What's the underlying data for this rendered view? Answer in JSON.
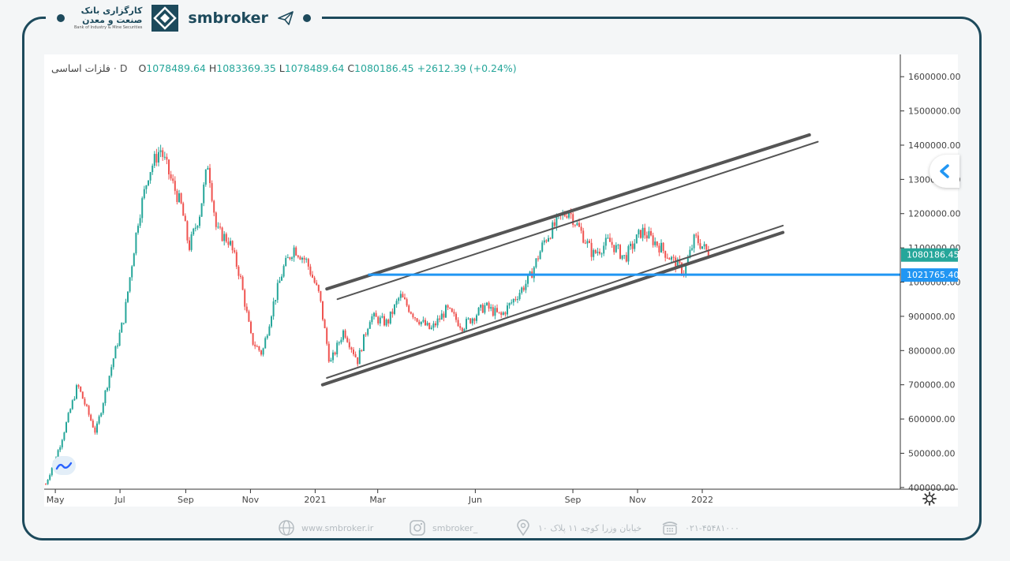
{
  "brand": {
    "bank_name_line1": "کارگزاری بانک",
    "bank_name_line2": "صنعت و معدن",
    "bank_name_en": "Bank of Industry & Mine Securities",
    "site_name": "smbroker",
    "bank_logo_icon": "diamond-logo-icon",
    "plane_icon": "paper-plane-icon"
  },
  "legend": {
    "symbol": "فلزات اساسی",
    "separator": "·",
    "interval": "D",
    "open_label": "O",
    "open": "1078489.64",
    "high_label": "H",
    "high": "1083369.35",
    "low_label": "L",
    "low": "1078489.64",
    "close_label": "C",
    "close": "1080186.45",
    "change": "+2612.39 (+0.24%)"
  },
  "chart_data": {
    "type": "candlestick",
    "title": "",
    "interval": "D",
    "x_axis_labels": [
      "May",
      "Jul",
      "Sep",
      "Nov",
      "2021",
      "Mar",
      "Jun",
      "Sep",
      "Nov",
      "2022"
    ],
    "y_axis": {
      "ticks": [
        400000,
        500000,
        600000,
        700000,
        800000,
        900000,
        1000000,
        1100000,
        1200000,
        1300000,
        1400000,
        1500000,
        1600000
      ],
      "tick_labels": [
        "400000.00",
        "500000.00",
        "600000.00",
        "700000.00",
        "800000.00",
        "900000.00",
        "1000000.00",
        "1100000.00",
        "1200000.00",
        "1300000.00",
        "1400000.00",
        "1500000.00",
        "1600000.00"
      ],
      "range": [
        395000,
        1665000
      ],
      "position": "right"
    },
    "up_color": "#26a69a",
    "down_color": "#ef5350",
    "approx_close_path": [
      {
        "x": "2020-04-22",
        "y": 410000
      },
      {
        "x": "2020-05-05",
        "y": 520000
      },
      {
        "x": "2020-05-22",
        "y": 700000
      },
      {
        "x": "2020-06-08",
        "y": 560000
      },
      {
        "x": "2020-06-25",
        "y": 780000
      },
      {
        "x": "2020-07-05",
        "y": 900000
      },
      {
        "x": "2020-07-18",
        "y": 1180000
      },
      {
        "x": "2020-07-28",
        "y": 1320000
      },
      {
        "x": "2020-08-08",
        "y": 1390000
      },
      {
        "x": "2020-08-18",
        "y": 1300000
      },
      {
        "x": "2020-08-28",
        "y": 1220000
      },
      {
        "x": "2020-09-04",
        "y": 1100000
      },
      {
        "x": "2020-09-14",
        "y": 1200000
      },
      {
        "x": "2020-09-22",
        "y": 1350000
      },
      {
        "x": "2020-09-30",
        "y": 1150000
      },
      {
        "x": "2020-10-12",
        "y": 1120000
      },
      {
        "x": "2020-10-22",
        "y": 1020000
      },
      {
        "x": "2020-11-02",
        "y": 830000
      },
      {
        "x": "2020-11-12",
        "y": 790000
      },
      {
        "x": "2020-11-22",
        "y": 930000
      },
      {
        "x": "2020-12-02",
        "y": 1040000
      },
      {
        "x": "2020-12-12",
        "y": 1100000
      },
      {
        "x": "2020-12-24",
        "y": 1060000
      },
      {
        "x": "2021-01-05",
        "y": 960000
      },
      {
        "x": "2021-01-15",
        "y": 760000
      },
      {
        "x": "2021-01-28",
        "y": 860000
      },
      {
        "x": "2021-02-10",
        "y": 770000
      },
      {
        "x": "2021-02-22",
        "y": 900000
      },
      {
        "x": "2021-03-10",
        "y": 880000
      },
      {
        "x": "2021-03-22",
        "y": 960000
      },
      {
        "x": "2021-04-05",
        "y": 900000
      },
      {
        "x": "2021-04-20",
        "y": 860000
      },
      {
        "x": "2021-05-05",
        "y": 920000
      },
      {
        "x": "2021-05-20",
        "y": 870000
      },
      {
        "x": "2021-06-10",
        "y": 930000
      },
      {
        "x": "2021-06-25",
        "y": 900000
      },
      {
        "x": "2021-07-10",
        "y": 960000
      },
      {
        "x": "2021-07-22",
        "y": 1010000
      },
      {
        "x": "2021-08-05",
        "y": 1120000
      },
      {
        "x": "2021-08-18",
        "y": 1180000
      },
      {
        "x": "2021-08-28",
        "y": 1210000
      },
      {
        "x": "2021-09-08",
        "y": 1150000
      },
      {
        "x": "2021-09-20",
        "y": 1080000
      },
      {
        "x": "2021-10-05",
        "y": 1120000
      },
      {
        "x": "2021-10-20",
        "y": 1070000
      },
      {
        "x": "2021-11-05",
        "y": 1150000
      },
      {
        "x": "2021-11-20",
        "y": 1110000
      },
      {
        "x": "2021-12-05",
        "y": 1060000
      },
      {
        "x": "2021-12-15",
        "y": 1030000
      },
      {
        "x": "2021-12-25",
        "y": 1130000
      },
      {
        "x": "2022-01-08",
        "y": 1080186.45
      }
    ],
    "current_price": {
      "value": 1080186.45,
      "label": "1080186.45"
    },
    "horizontal_level": {
      "value": 1021765.4,
      "label": "1021765.40",
      "color": "#2196f3"
    },
    "trend_lines": [
      {
        "name": "upper-outer",
        "from": {
          "x": "2021-01-12",
          "y": 980000
        },
        "to": {
          "x": "2022-04-12",
          "y": 1430000
        }
      },
      {
        "name": "upper-inner",
        "from": {
          "x": "2021-01-22",
          "y": 950000
        },
        "to": {
          "x": "2022-04-20",
          "y": 1410000
        }
      },
      {
        "name": "lower-inner",
        "from": {
          "x": "2021-01-12",
          "y": 720000
        },
        "to": {
          "x": "2022-03-18",
          "y": 1165000
        }
      },
      {
        "name": "lower-outer",
        "from": {
          "x": "2021-01-08",
          "y": 700000
        },
        "to": {
          "x": "2022-03-18",
          "y": 1145000
        }
      }
    ],
    "grid": false,
    "legend_position": "top-left"
  },
  "icons": {
    "collapse": "chevron-left-icon",
    "settings": "gear-icon",
    "tradingview": "tradingview-logo-icon"
  },
  "footer": {
    "website": "www.smbroker.ir",
    "instagram": "smbroker_",
    "address": "خیابان وزرا کوچه ۱۱ پلاک ۱۰",
    "phone": "۰۲۱-۴۵۴۸۱۰۰۰"
  }
}
